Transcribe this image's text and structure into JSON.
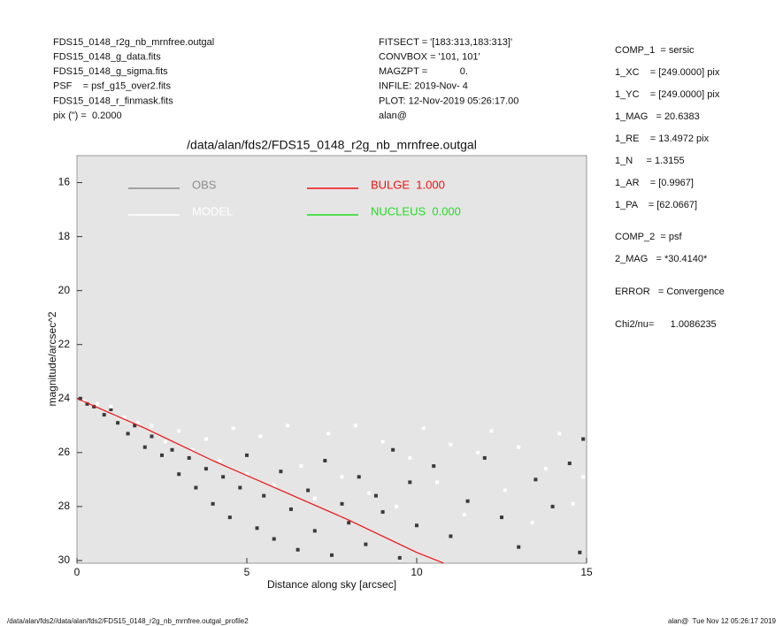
{
  "header": {
    "left": [
      "FDS15_0148_r2g_nb_mrnfree.outgal",
      "FDS15_0148_g_data.fits",
      "FDS15_0148_g_sigma.fits",
      "PSF    = psf_g15_over2.fits",
      "FDS15_0148_r_finmask.fits",
      "pix (\") =  0.2000"
    ],
    "middle": [
      "FITSECT = '[183:313,183:313]'",
      "CONVBOX = '101, 101'",
      "MAGZPT =            0.",
      "INFILE: 2019-Nov- 4",
      "PLOT: 12-Nov-2019 05:26:17.00",
      "alan@"
    ],
    "right": [
      "COMP_1  = sersic",
      "1_XC    = [249.0000] pix",
      "1_YC    = [249.0000] pix",
      "1_MAG   = 20.6383",
      "1_RE    = 13.4972 pix",
      "1_N     = 1.3155",
      "1_AR    = [0.9967]",
      "1_PA    = [62.0667]",
      "COMP_2  = psf",
      "2_MAG   = *30.4140*",
      "ERROR   = Convergence",
      "Chi2/nu=      1.0086235"
    ]
  },
  "footer": {
    "left": "/data/alan/fds2//data/alan/fds2/FDS15_0148_r2g_nb_mrnfree.outgal_profile2",
    "right": "alan@  Tue Nov 12 05:26:17 2019"
  },
  "chart_data": {
    "type": "scatter",
    "title": "/data/alan/fds2/FDS15_0148_r2g_nb_mrnfree.outgal",
    "x_label": "Distance along sky [arcsec]",
    "y_label": "magnitude/arcsec^2",
    "xlim": [
      0,
      15
    ],
    "xticks": [
      0,
      5,
      10,
      15
    ],
    "ylim": [
      30.1,
      15
    ],
    "yticks": [
      16,
      18,
      20,
      22,
      24,
      26,
      28,
      30
    ],
    "grid": false,
    "background": "#e5e5e5",
    "series": [
      {
        "name": "OBS",
        "color": "#8c8c8c",
        "marker_color": "#3a3a3a",
        "mode": "markers",
        "x": [
          0.1,
          0.3,
          0.5,
          0.8,
          1.0,
          1.2,
          1.5,
          1.7,
          2.0,
          2.2,
          2.5,
          2.8,
          3.0,
          3.3,
          3.5,
          3.8,
          4.0,
          4.3,
          4.5,
          4.8,
          5.0,
          5.3,
          5.5,
          5.8,
          6.0,
          6.3,
          6.5,
          6.8,
          7.0,
          7.3,
          7.5,
          7.8,
          8.0,
          8.3,
          8.5,
          8.8,
          9.0,
          9.3,
          9.5,
          9.8,
          10.0,
          10.5,
          11.0,
          11.5,
          12.0,
          12.5,
          13.0,
          13.5,
          14.0,
          14.5,
          14.8,
          14.9
        ],
        "values": [
          24.0,
          24.2,
          24.3,
          24.6,
          24.4,
          24.9,
          25.3,
          25.0,
          25.8,
          25.4,
          26.1,
          25.9,
          26.8,
          26.2,
          27.3,
          26.6,
          27.9,
          26.9,
          28.4,
          27.3,
          26.1,
          28.8,
          27.6,
          29.2,
          26.7,
          28.1,
          29.6,
          27.4,
          28.9,
          26.3,
          29.8,
          27.9,
          28.6,
          26.9,
          29.4,
          27.6,
          28.2,
          25.9,
          29.9,
          27.1,
          28.7,
          26.5,
          29.1,
          27.8,
          26.2,
          28.4,
          29.5,
          27.0,
          28.0,
          26.4,
          29.7,
          25.5
        ]
      },
      {
        "name": "MODEL",
        "color": "#ffffff",
        "marker_color": "#ffffff",
        "mode": "markers",
        "x": [
          0.2,
          0.6,
          1.0,
          1.4,
          1.8,
          2.2,
          2.6,
          3.0,
          3.4,
          3.8,
          4.2,
          4.6,
          5.0,
          5.4,
          5.8,
          6.2,
          6.6,
          7.0,
          7.4,
          7.8,
          8.2,
          8.6,
          9.0,
          9.4,
          9.8,
          10.2,
          10.6,
          11.0,
          11.4,
          11.8,
          12.2,
          12.6,
          13.0,
          13.4,
          13.8,
          14.2,
          14.6,
          14.9
        ],
        "values": [
          24.1,
          24.2,
          24.3,
          24.7,
          24.9,
          25.0,
          25.6,
          25.2,
          25.9,
          25.5,
          26.3,
          25.1,
          26.8,
          25.4,
          27.2,
          25.0,
          26.5,
          27.7,
          25.3,
          26.9,
          25.0,
          27.5,
          25.6,
          28.0,
          26.2,
          25.1,
          27.1,
          25.7,
          28.3,
          26.0,
          25.2,
          27.4,
          25.8,
          28.6,
          26.6,
          25.3,
          27.9,
          26.9
        ]
      },
      {
        "name": "BULGE  1.000",
        "color": "#ee1111",
        "mode": "line",
        "x": [
          0,
          2,
          4,
          6,
          8,
          10,
          10.8
        ],
        "values": [
          24.0,
          25.1,
          26.3,
          27.4,
          28.5,
          29.7,
          30.1
        ]
      },
      {
        "name": "NUCLEUS  0.000",
        "color": "#22dd22",
        "mode": "line",
        "x": [],
        "values": []
      }
    ]
  }
}
